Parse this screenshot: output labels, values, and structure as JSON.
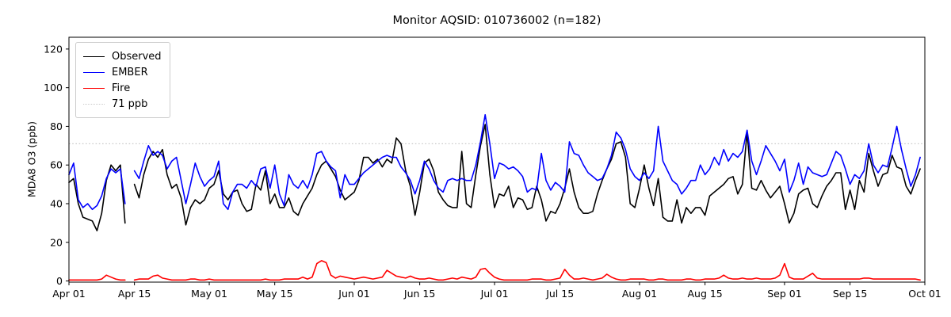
{
  "title": "Monitor AQSID: 010736002 (n=182)",
  "monitor_aqsid": "010736002",
  "n_obs": "182",
  "chart_data": {
    "type": "line",
    "title": "Monitor AQSID: 010736002 (n=182)",
    "xlabel": "",
    "ylabel": "MDA8 O3 (ppb)",
    "ylim": [
      -0.6,
      126.1
    ],
    "yticks": [
      0,
      20,
      40,
      60,
      80,
      100,
      120
    ],
    "x_tick_labels": [
      "Apr 01",
      "Apr 15",
      "May 01",
      "May 15",
      "Jun 01",
      "Jun 15",
      "Jul 01",
      "Jul 15",
      "Aug 01",
      "Aug 15",
      "Sep 01",
      "Sep 15",
      "Oct 01"
    ],
    "x_tick_day_index": [
      0,
      14,
      30,
      44,
      61,
      75,
      91,
      105,
      122,
      136,
      153,
      167,
      183
    ],
    "x_range_days": 183,
    "date_start": "Apr 01",
    "date_end": "Sep 30",
    "grid": false,
    "legend_position": "upper-left",
    "threshold": {
      "value": 71,
      "label": "71 ppb",
      "color": "#c9c9c9",
      "style": "dotted"
    },
    "series": [
      {
        "name": "Observed",
        "color": "#000000",
        "values": [
          51,
          53,
          40,
          33,
          32,
          31,
          26,
          35,
          52,
          60,
          57,
          60,
          30,
          null,
          50,
          43,
          55,
          63,
          67,
          64,
          68,
          55,
          48,
          50,
          43,
          29,
          38,
          42,
          40,
          42,
          48,
          50,
          57,
          45,
          42,
          46,
          47,
          40,
          36,
          37,
          50,
          47,
          57,
          40,
          45,
          38,
          38,
          43,
          36,
          34,
          40,
          44,
          48,
          55,
          60,
          62,
          58,
          54,
          47,
          42,
          44,
          46,
          52,
          64,
          64,
          61,
          63,
          59,
          63,
          61,
          74,
          71,
          57,
          49,
          34,
          46,
          61,
          63,
          57,
          46,
          42,
          39,
          38,
          38,
          67,
          40,
          38,
          55,
          70,
          81,
          55,
          38,
          45,
          44,
          49,
          38,
          43,
          42,
          37,
          38,
          49,
          42,
          31,
          36,
          35,
          40,
          48,
          58,
          46,
          38,
          35,
          35,
          36,
          45,
          52,
          58,
          63,
          71,
          72,
          64,
          40,
          38,
          48,
          60,
          48,
          39,
          53,
          33,
          31,
          31,
          42,
          30,
          38,
          35,
          38,
          38,
          34,
          44,
          46,
          48,
          50,
          53,
          54,
          45,
          50,
          77,
          48,
          47,
          52,
          47,
          43,
          46,
          49,
          40,
          30,
          35,
          45,
          47,
          48,
          40,
          38,
          44,
          49,
          52,
          56,
          56,
          37,
          47,
          37,
          52,
          46,
          66,
          57,
          49,
          55,
          56,
          65,
          59,
          58,
          49,
          45,
          52,
          58
        ]
      },
      {
        "name": "EMBER",
        "color": "#0000ff",
        "values": [
          55,
          61,
          42,
          38,
          40,
          37,
          39,
          44,
          53,
          58,
          56,
          58,
          40,
          null,
          57,
          53,
          62,
          70,
          65,
          67,
          65,
          58,
          62,
          64,
          52,
          40,
          50,
          61,
          54,
          49,
          52,
          54,
          62,
          40,
          37,
          46,
          50,
          50,
          48,
          52,
          49,
          58,
          59,
          48,
          60,
          45,
          39,
          55,
          50,
          48,
          52,
          48,
          55,
          66,
          67,
          62,
          59,
          57,
          43,
          55,
          50,
          50,
          53,
          56,
          58,
          60,
          62,
          64,
          65,
          64,
          64,
          59,
          56,
          52,
          45,
          52,
          62,
          58,
          52,
          48,
          46,
          52,
          53,
          52,
          53,
          52,
          52,
          60,
          72,
          86,
          71,
          53,
          61,
          60,
          58,
          59,
          57,
          54,
          46,
          48,
          47,
          66,
          52,
          47,
          51,
          49,
          46,
          72,
          66,
          65,
          60,
          56,
          54,
          52,
          53,
          58,
          65,
          77,
          74,
          68,
          58,
          54,
          52,
          56,
          53,
          57,
          80,
          62,
          57,
          52,
          50,
          45,
          48,
          52,
          52,
          60,
          55,
          58,
          64,
          60,
          68,
          62,
          66,
          64,
          67,
          78,
          62,
          55,
          62,
          70,
          66,
          62,
          57,
          63,
          46,
          52,
          61,
          50,
          59,
          56,
          55,
          54,
          55,
          61,
          67,
          65,
          58,
          50,
          55,
          53,
          57,
          71,
          60,
          56,
          60,
          59,
          69,
          80,
          68,
          58,
          49,
          55,
          64
        ]
      },
      {
        "name": "Fire",
        "color": "#ff0000",
        "values": [
          0.5,
          0.5,
          0.5,
          0.5,
          0.5,
          0.5,
          0.5,
          1,
          3,
          2,
          1,
          0.5,
          0.5,
          null,
          0.5,
          1,
          1,
          1,
          2.5,
          3,
          1.5,
          1,
          0.5,
          0.5,
          0.5,
          0.5,
          1,
          1,
          0.5,
          0.5,
          1,
          0.5,
          0.5,
          0.5,
          0.5,
          0.5,
          0.5,
          0.5,
          0.5,
          0.5,
          0.5,
          0.5,
          1,
          0.5,
          0.5,
          0.5,
          1,
          1,
          1,
          1,
          2,
          1,
          2,
          9,
          10.5,
          9.5,
          3,
          1.5,
          2.5,
          2,
          1.5,
          1,
          1.5,
          2,
          1.5,
          1,
          1.5,
          2,
          5.5,
          4,
          2.5,
          2,
          1.5,
          2.5,
          1.5,
          1,
          1,
          1.5,
          1,
          0.5,
          0.5,
          1,
          1.5,
          1,
          2,
          1.5,
          1,
          2,
          6,
          6.5,
          4,
          2,
          1,
          0.5,
          0.5,
          0.5,
          0.5,
          0.5,
          0.5,
          1,
          1,
          1,
          0.5,
          0.5,
          1,
          1.5,
          6,
          3,
          1,
          1,
          1.5,
          1,
          0.5,
          1,
          1.5,
          3.5,
          2,
          1,
          0.5,
          0.5,
          1,
          1,
          1,
          1,
          0.5,
          0.5,
          1,
          1,
          0.5,
          0.5,
          0.5,
          0.5,
          1,
          1,
          0.5,
          0.5,
          1,
          1,
          1,
          1.5,
          3,
          1.5,
          1,
          1,
          1.5,
          1,
          1,
          1.5,
          1,
          1,
          1,
          1.5,
          3,
          9,
          2,
          1,
          1,
          1,
          2.5,
          4,
          1.5,
          1,
          1,
          1,
          1,
          1,
          1,
          1,
          1,
          1,
          1.5,
          1.5,
          1,
          1,
          1,
          1,
          1,
          1,
          1,
          1,
          1,
          1,
          0.5
        ]
      }
    ]
  },
  "legend": {
    "observed_label": "Observed",
    "ember_label": "EMBER",
    "fire_label": "Fire",
    "threshold_label": "71 ppb"
  }
}
